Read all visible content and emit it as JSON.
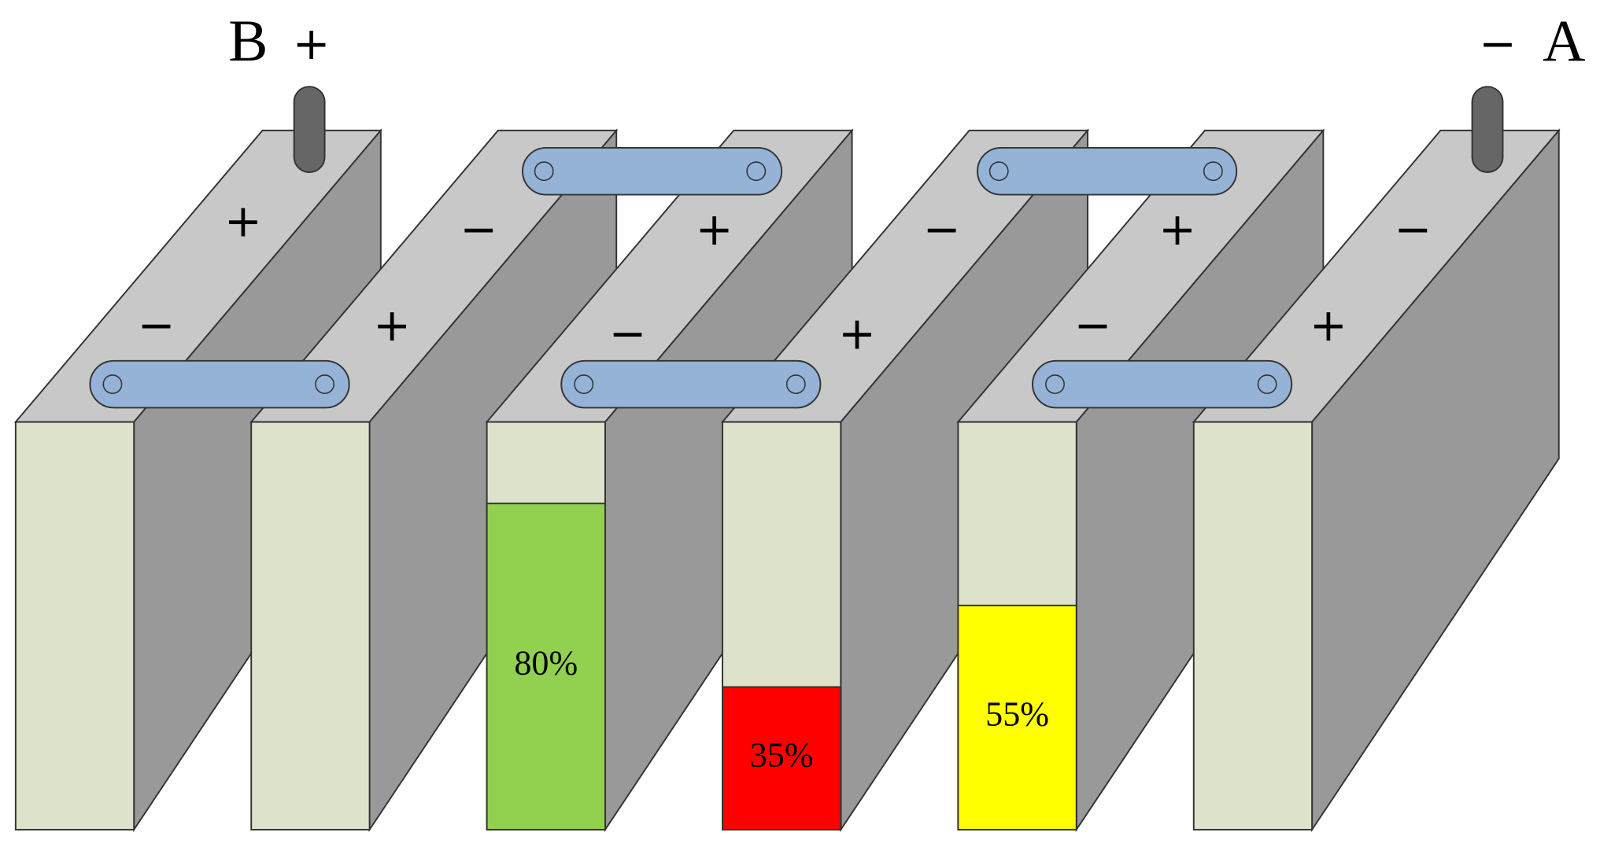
{
  "terminals": [
    {
      "label": "B",
      "sign": "+"
    },
    {
      "sign": "−",
      "label": "A"
    }
  ],
  "cells": [
    {
      "back_sign": "+",
      "front_sign": "−"
    },
    {
      "back_sign": "−",
      "front_sign": "+"
    },
    {
      "back_sign": "+",
      "front_sign": "−",
      "charge": 80,
      "charge_label": "80%",
      "color": "#92d050"
    },
    {
      "back_sign": "−",
      "front_sign": "+",
      "charge": 35,
      "charge_label": "35%",
      "color": "#ff0000"
    },
    {
      "back_sign": "+",
      "front_sign": "−",
      "charge": 55,
      "charge_label": "55%",
      "color": "#ffff00"
    },
    {
      "back_sign": "−",
      "front_sign": "+"
    }
  ]
}
